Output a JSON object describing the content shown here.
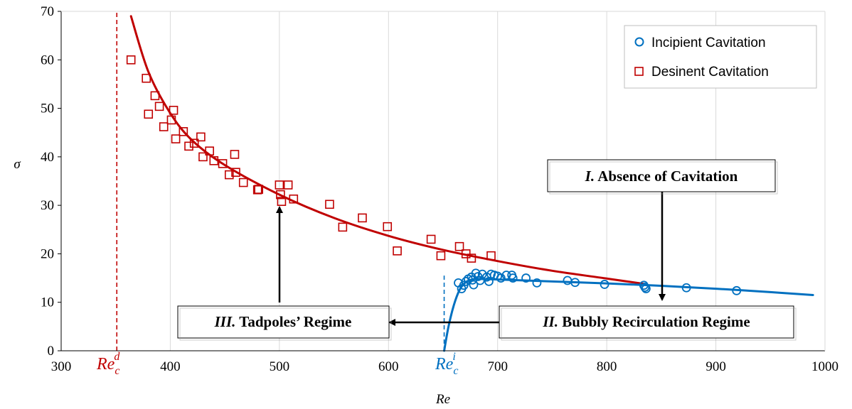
{
  "colors": {
    "desinent": "#c00000",
    "incipient": "#0070c0",
    "grid": "#d9d9d9",
    "axis": "#000000"
  },
  "chart_data": {
    "type": "scatter",
    "xlabel": "Re",
    "ylabel": "σ",
    "xlim": [
      300,
      1000
    ],
    "ylim": [
      0,
      70
    ],
    "xticks": [
      300,
      400,
      500,
      600,
      700,
      800,
      900,
      1000
    ],
    "yticks": [
      0,
      10,
      20,
      30,
      40,
      50,
      60,
      70
    ],
    "grid": {
      "vertical": true,
      "horizontal": false
    },
    "legend": "top-right",
    "series": [
      {
        "name": "Incipient Cavitation",
        "marker": "circle",
        "color": "#0070c0",
        "points": [
          [
            664,
            14.0
          ],
          [
            667,
            12.8
          ],
          [
            669,
            13.5
          ],
          [
            671,
            14.3
          ],
          [
            673,
            14.8
          ],
          [
            676,
            15.2
          ],
          [
            677,
            14.6
          ],
          [
            678,
            13.6
          ],
          [
            680,
            16.0
          ],
          [
            682,
            15.3
          ],
          [
            684,
            14.5
          ],
          [
            686,
            15.8
          ],
          [
            690,
            15.2
          ],
          [
            692,
            14.3
          ],
          [
            694,
            15.8
          ],
          [
            697,
            15.6
          ],
          [
            700,
            15.4
          ],
          [
            703,
            15.0
          ],
          [
            708,
            15.6
          ],
          [
            713,
            15.6
          ],
          [
            714,
            15.0
          ],
          [
            726,
            15.0
          ],
          [
            736,
            14.0
          ],
          [
            764,
            14.5
          ],
          [
            771,
            14.1
          ],
          [
            798,
            13.7
          ],
          [
            834,
            13.5
          ],
          [
            835,
            13.1
          ],
          [
            836,
            12.8
          ],
          [
            873,
            13.0
          ],
          [
            919,
            12.4
          ]
        ]
      },
      {
        "name": "Desinent Cavitation",
        "marker": "square",
        "color": "#c00000",
        "points": [
          [
            364,
            60.0
          ],
          [
            378,
            56.2
          ],
          [
            380,
            48.8
          ],
          [
            386,
            52.6
          ],
          [
            390,
            50.4
          ],
          [
            394,
            46.2
          ],
          [
            401,
            47.6
          ],
          [
            403,
            49.6
          ],
          [
            405,
            43.7
          ],
          [
            412,
            45.2
          ],
          [
            417,
            42.2
          ],
          [
            422,
            42.8
          ],
          [
            428,
            44.1
          ],
          [
            430,
            40.0
          ],
          [
            436,
            41.2
          ],
          [
            440,
            39.2
          ],
          [
            448,
            38.6
          ],
          [
            454,
            36.3
          ],
          [
            459,
            40.5
          ],
          [
            460,
            36.8
          ],
          [
            467,
            34.7
          ],
          [
            480,
            33.2
          ],
          [
            481,
            33.3
          ],
          [
            500,
            34.2
          ],
          [
            501,
            32.2
          ],
          [
            502,
            30.8
          ],
          [
            508,
            34.2
          ],
          [
            513,
            31.3
          ],
          [
            546,
            30.2
          ],
          [
            558,
            25.5
          ],
          [
            576,
            27.4
          ],
          [
            599,
            25.6
          ],
          [
            608,
            20.6
          ],
          [
            639,
            23.0
          ],
          [
            648,
            19.6
          ],
          [
            665,
            21.5
          ],
          [
            671,
            20.0
          ],
          [
            676,
            19.1
          ],
          [
            694,
            19.6
          ]
        ]
      }
    ],
    "fits": [
      {
        "series": "Desinent Cavitation",
        "color": "#c00000",
        "points": [
          [
            364,
            69.0
          ],
          [
            380,
            57.5
          ],
          [
            400,
            49.0
          ],
          [
            420,
            43.4
          ],
          [
            450,
            38.3
          ],
          [
            500,
            32.2
          ],
          [
            550,
            27.4
          ],
          [
            600,
            23.7
          ],
          [
            650,
            20.8
          ],
          [
            700,
            18.5
          ],
          [
            750,
            16.5
          ],
          [
            800,
            14.9
          ],
          [
            834,
            13.8
          ]
        ]
      },
      {
        "series": "Incipient Cavitation",
        "color": "#0070c0",
        "points": [
          [
            651,
            0.0
          ],
          [
            655,
            5.0
          ],
          [
            660,
            9.5
          ],
          [
            665,
            12.5
          ],
          [
            670,
            14.0
          ],
          [
            675,
            14.6
          ],
          [
            682,
            14.8
          ],
          [
            700,
            14.7
          ],
          [
            750,
            14.3
          ],
          [
            800,
            13.9
          ],
          [
            850,
            13.4
          ],
          [
            900,
            12.8
          ],
          [
            950,
            12.1
          ],
          [
            989,
            11.5
          ]
        ]
      }
    ],
    "critical_lines": [
      {
        "x": 351,
        "color": "#c00000",
        "from_y": 0,
        "to_y": 70
      },
      {
        "x": 651,
        "color": "#0070c0",
        "from_y": 0,
        "to_y": 15.5
      }
    ],
    "critical_labels": {
      "desinent": {
        "base": "Re",
        "sub": "c",
        "sup": "d"
      },
      "incipient": {
        "base": "Re",
        "sub": "c",
        "sup": "i"
      }
    },
    "annotations": {
      "regime1": {
        "numeral": "I.",
        "text": "Absence of Cavitation"
      },
      "regime2": {
        "numeral": "II.",
        "text": "Bubbly Recirculation Regime"
      },
      "regime3": {
        "numeral": "III.",
        "text": "Tadpoles’ Regime"
      }
    }
  }
}
